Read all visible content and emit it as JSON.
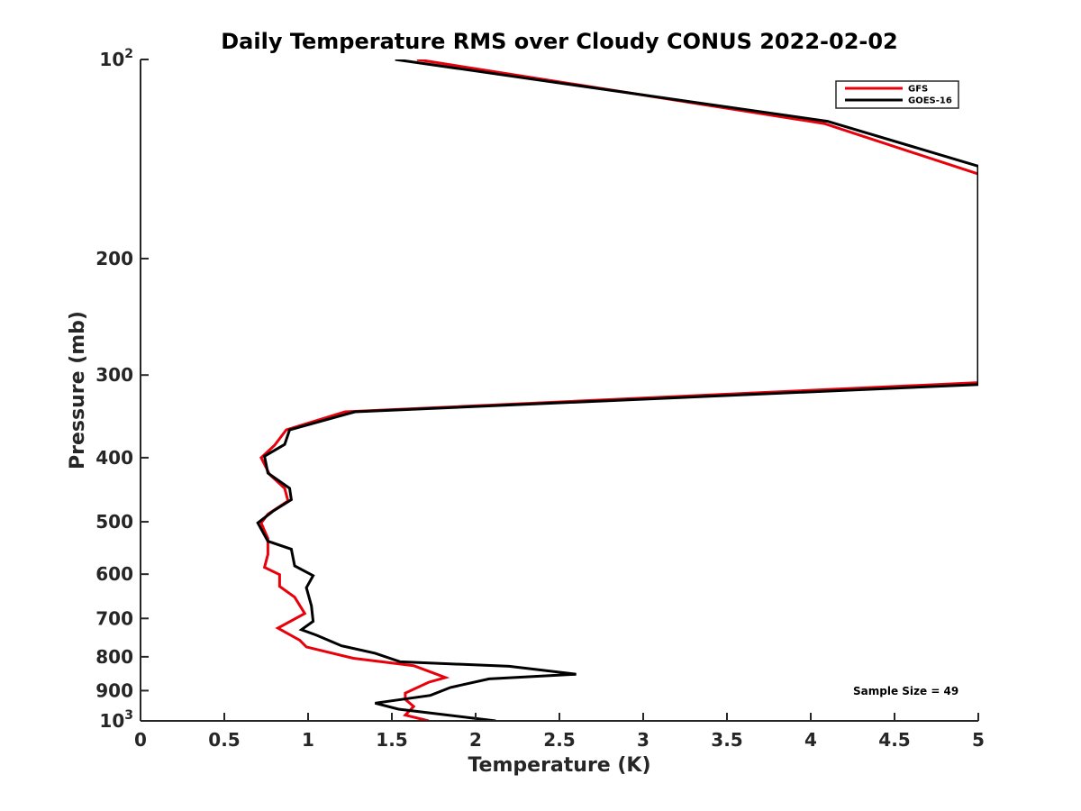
{
  "chart_data": {
    "type": "line",
    "title": "Daily Temperature RMS over Cloudy CONUS 2022-02-02",
    "xlabel": "Temperature (K)",
    "ylabel": "Pressure (mb)",
    "xlim": [
      0,
      5
    ],
    "ylim": [
      100,
      1000
    ],
    "y_scale": "log",
    "y_reversed": true,
    "grid": false,
    "legend_position": "top-right",
    "x_ticks": [
      "0",
      "0.5",
      "1",
      "1.5",
      "2",
      "2.5",
      "3",
      "3.5",
      "4",
      "4.5",
      "5"
    ],
    "y_ticks": [
      {
        "value": 100,
        "label": "10",
        "sup": "2"
      },
      {
        "value": 200,
        "label": "200",
        "sup": ""
      },
      {
        "value": 300,
        "label": "300",
        "sup": ""
      },
      {
        "value": 400,
        "label": "400",
        "sup": ""
      },
      {
        "value": 500,
        "label": "500",
        "sup": ""
      },
      {
        "value": 600,
        "label": "600",
        "sup": ""
      },
      {
        "value": 700,
        "label": "700",
        "sup": ""
      },
      {
        "value": 800,
        "label": "800",
        "sup": ""
      },
      {
        "value": 900,
        "label": "900",
        "sup": ""
      },
      {
        "value": 1000,
        "label": "10",
        "sup": "3"
      }
    ],
    "annotation": "Sample Size = 49",
    "series": [
      {
        "name": "GFS",
        "color": "#e8000b",
        "points": [
          {
            "x": 1.65,
            "y": 100
          },
          {
            "x": 4.08,
            "y": 125
          },
          {
            "x": 5.0,
            "y": 149
          },
          {
            "x": 5.0,
            "y": 308
          },
          {
            "x": 1.22,
            "y": 341
          },
          {
            "x": 0.87,
            "y": 363
          },
          {
            "x": 0.8,
            "y": 383
          },
          {
            "x": 0.72,
            "y": 400
          },
          {
            "x": 0.77,
            "y": 424
          },
          {
            "x": 0.86,
            "y": 445
          },
          {
            "x": 0.88,
            "y": 465
          },
          {
            "x": 0.76,
            "y": 487
          },
          {
            "x": 0.72,
            "y": 502
          },
          {
            "x": 0.76,
            "y": 530
          },
          {
            "x": 0.76,
            "y": 560
          },
          {
            "x": 0.74,
            "y": 586
          },
          {
            "x": 0.83,
            "y": 601
          },
          {
            "x": 0.83,
            "y": 626
          },
          {
            "x": 0.92,
            "y": 650
          },
          {
            "x": 0.98,
            "y": 688
          },
          {
            "x": 0.82,
            "y": 724
          },
          {
            "x": 0.95,
            "y": 755
          },
          {
            "x": 0.99,
            "y": 773
          },
          {
            "x": 1.27,
            "y": 804
          },
          {
            "x": 1.63,
            "y": 825
          },
          {
            "x": 1.74,
            "y": 845
          },
          {
            "x": 1.82,
            "y": 860
          },
          {
            "x": 1.72,
            "y": 874
          },
          {
            "x": 1.58,
            "y": 908
          },
          {
            "x": 1.58,
            "y": 928
          },
          {
            "x": 1.63,
            "y": 951
          },
          {
            "x": 1.58,
            "y": 980
          },
          {
            "x": 1.72,
            "y": 1000
          }
        ]
      },
      {
        "name": "GOES-16",
        "color": "#000000",
        "points": [
          {
            "x": 1.52,
            "y": 100
          },
          {
            "x": 4.1,
            "y": 124
          },
          {
            "x": 5.0,
            "y": 145
          },
          {
            "x": 5.0,
            "y": 310
          },
          {
            "x": 1.28,
            "y": 341
          },
          {
            "x": 0.89,
            "y": 363
          },
          {
            "x": 0.86,
            "y": 382
          },
          {
            "x": 0.74,
            "y": 398
          },
          {
            "x": 0.76,
            "y": 422
          },
          {
            "x": 0.89,
            "y": 445
          },
          {
            "x": 0.9,
            "y": 463
          },
          {
            "x": 0.79,
            "y": 482
          },
          {
            "x": 0.7,
            "y": 502
          },
          {
            "x": 0.76,
            "y": 535
          },
          {
            "x": 0.9,
            "y": 550
          },
          {
            "x": 0.92,
            "y": 583
          },
          {
            "x": 1.03,
            "y": 603
          },
          {
            "x": 0.99,
            "y": 629
          },
          {
            "x": 1.02,
            "y": 670
          },
          {
            "x": 1.03,
            "y": 707
          },
          {
            "x": 0.96,
            "y": 728
          },
          {
            "x": 1.05,
            "y": 742
          },
          {
            "x": 1.2,
            "y": 770
          },
          {
            "x": 1.4,
            "y": 790
          },
          {
            "x": 1.55,
            "y": 814
          },
          {
            "x": 2.2,
            "y": 827
          },
          {
            "x": 2.6,
            "y": 850
          },
          {
            "x": 2.08,
            "y": 864
          },
          {
            "x": 1.85,
            "y": 890
          },
          {
            "x": 1.73,
            "y": 915
          },
          {
            "x": 1.4,
            "y": 940
          },
          {
            "x": 1.54,
            "y": 960
          },
          {
            "x": 2.12,
            "y": 1000
          }
        ]
      }
    ]
  }
}
